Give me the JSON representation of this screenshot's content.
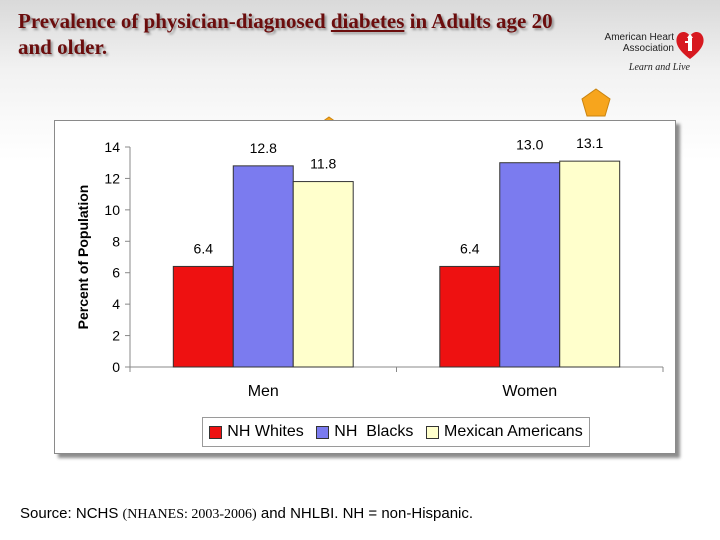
{
  "slide": {
    "title_part1": "Prevalence of physician-diagnosed ",
    "title_underlined": "diabetes",
    "title_part2": " in Adults age 20 and older.",
    "source_part1": "Source: NCHS ",
    "source_part2": "(NHANES: 2003-2006)",
    "source_part3": " and NHLBI.  NH = non-Hispanic."
  },
  "logo": {
    "line1": "American Heart",
    "line2": "Association",
    "tagline": "Learn and Live",
    "icon": "heart-torch-icon",
    "color": "#d71920"
  },
  "markers": {
    "icon": "pentagon-arrow-icon",
    "color": "#f7a51d"
  },
  "chart_data": {
    "type": "bar",
    "categories": [
      "Men",
      "Women"
    ],
    "series": [
      {
        "name": "NH Whites",
        "values": [
          6.4,
          6.4
        ],
        "labels": [
          "6.4",
          "6.4"
        ],
        "color": "#ee1111"
      },
      {
        "name": "NH  Blacks",
        "values": [
          12.8,
          13.0
        ],
        "labels": [
          "12.8",
          "13.0"
        ],
        "color": "#7b7bef"
      },
      {
        "name": "Mexican Americans",
        "values": [
          11.8,
          13.1
        ],
        "labels": [
          "11.8",
          "13.1"
        ],
        "color": "#ffffcc"
      }
    ],
    "ylabel": "Percent of Population",
    "xlabel": "",
    "ylim": [
      0,
      14
    ],
    "yticks": [
      0,
      2,
      4,
      6,
      8,
      10,
      12,
      14
    ],
    "grid": false,
    "legend_position": "bottom"
  }
}
